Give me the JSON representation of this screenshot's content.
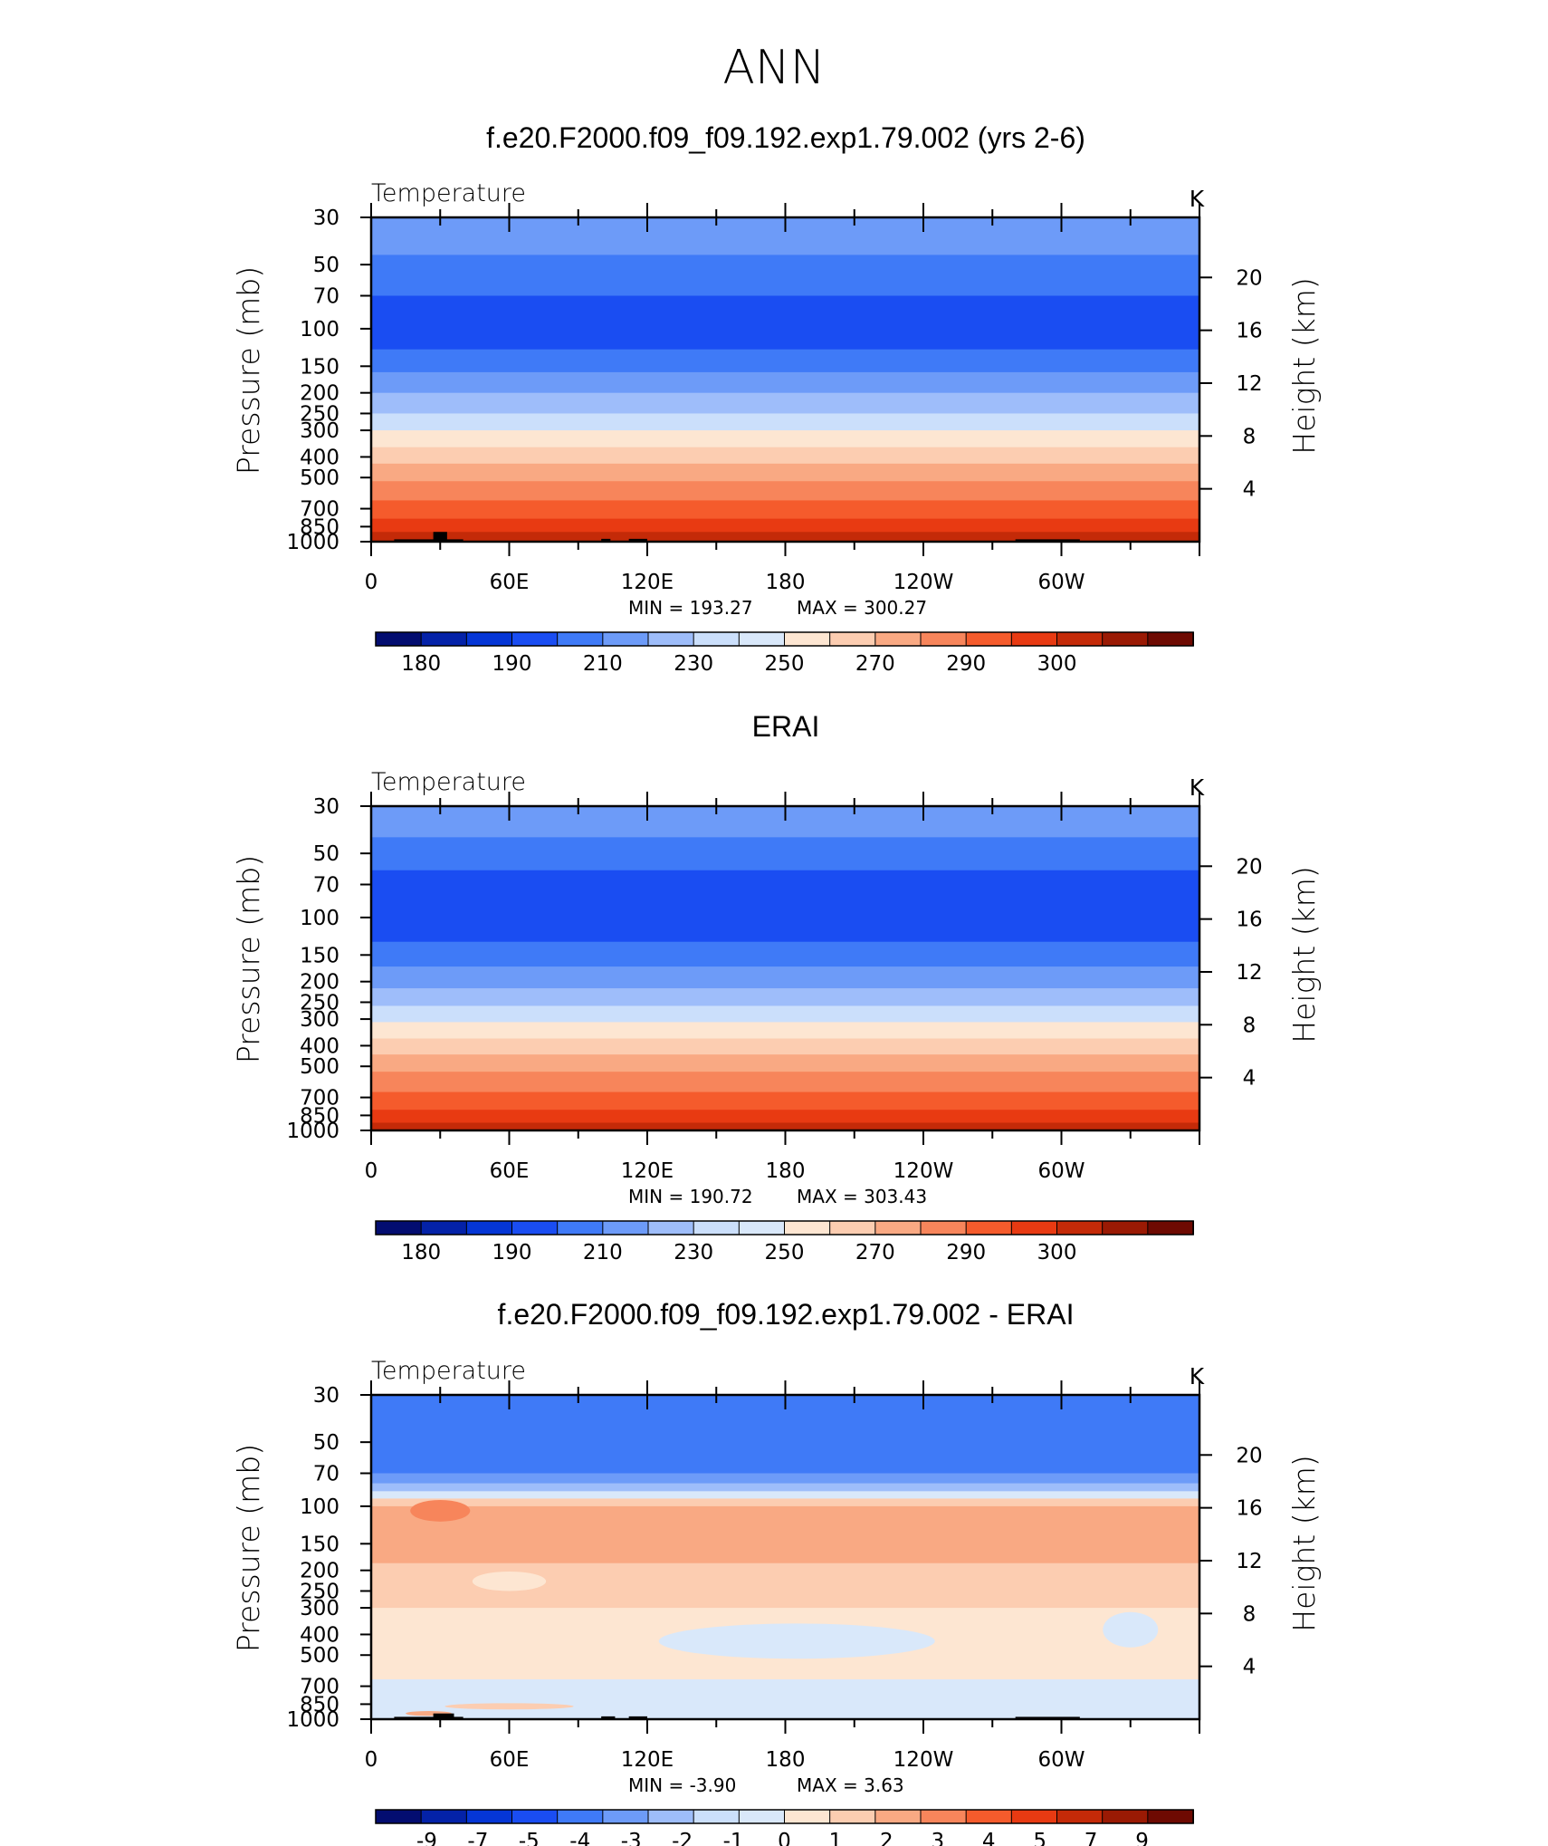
{
  "figure": {
    "title": "ANN"
  },
  "colors": {
    "abs_scale": [
      "#030d70",
      "#0422a8",
      "#0536d6",
      "#1a4df2",
      "#3f7af7",
      "#6d9bf8",
      "#9ebdfa",
      "#cbdffb",
      "#d9e8fa",
      "#fde6d2",
      "#fccdb1",
      "#f9a983",
      "#f7855b",
      "#f55b2c",
      "#e83a12",
      "#c42a08",
      "#9a1a04",
      "#6e0a02"
    ],
    "diff_scale": [
      "#030d70",
      "#0422a8",
      "#0536d6",
      "#1a4df2",
      "#3f7af7",
      "#6d9bf8",
      "#9ebdfa",
      "#cbdffb",
      "#d9e8fa",
      "#fde6d2",
      "#fccdb1",
      "#f9a983",
      "#f7855b",
      "#f55b2c",
      "#e83a12",
      "#c42a08",
      "#9a1a04",
      "#6e0a02"
    ],
    "land": "#000000"
  },
  "chart_data": [
    {
      "type": "heatmap",
      "title": "f.e20.F2000.f09_f09.192.exp1.79.002 (yrs 2-6)",
      "variable": "Temperature",
      "units": "K",
      "ylabel": "Pressure (mb)",
      "ylabel_right": "Height (km)",
      "x_ticklabels": [
        "0",
        "60E",
        "120E",
        "180",
        "120W",
        "60W"
      ],
      "x_tick_positions_deg": [
        0,
        60,
        120,
        180,
        240,
        300
      ],
      "xlim": [
        0,
        360
      ],
      "y_ticks_mb": [
        30,
        50,
        70,
        100,
        150,
        200,
        250,
        300,
        400,
        500,
        700,
        850,
        1000
      ],
      "y_tick_labels": [
        "30",
        "50",
        "70",
        "100",
        "150",
        "200",
        "250",
        "300",
        "400",
        "500",
        "700",
        "850",
        "1000"
      ],
      "ylim_mb": [
        1000,
        30
      ],
      "height_ticks_km": [
        4,
        8,
        12,
        16,
        20
      ],
      "height_tick_labels": [
        "4",
        "8",
        "12",
        "16",
        "20"
      ],
      "min_label": "MIN =  193.27",
      "max_label": "MAX =  300.27",
      "colorbar_tick_labels": [
        "180",
        "190",
        "210",
        "230",
        "250",
        "270",
        "290",
        "300"
      ],
      "color_bands": [
        {
          "p_top": 30,
          "p_bot": 45,
          "color_index": 5
        },
        {
          "p_top": 45,
          "p_bot": 70,
          "color_index": 4
        },
        {
          "p_top": 70,
          "p_bot": 125,
          "color_index": 3
        },
        {
          "p_top": 125,
          "p_bot": 160,
          "color_index": 4
        },
        {
          "p_top": 160,
          "p_bot": 200,
          "color_index": 5
        },
        {
          "p_top": 200,
          "p_bot": 250,
          "color_index": 6
        },
        {
          "p_top": 250,
          "p_bot": 300,
          "color_index": 7
        },
        {
          "p_top": 300,
          "p_bot": 360,
          "color_index": 9
        },
        {
          "p_top": 360,
          "p_bot": 430,
          "color_index": 10
        },
        {
          "p_top": 430,
          "p_bot": 520,
          "color_index": 11
        },
        {
          "p_top": 520,
          "p_bot": 640,
          "color_index": 12
        },
        {
          "p_top": 640,
          "p_bot": 780,
          "color_index": 13
        },
        {
          "p_top": 780,
          "p_bot": 900,
          "color_index": 14
        },
        {
          "p_top": 900,
          "p_bot": 1000,
          "color_index": 15
        }
      ],
      "land_blocks": [
        {
          "lon_start": 10,
          "lon_end": 40,
          "p_top": 975
        },
        {
          "lon_start": 27,
          "lon_end": 33,
          "p_top": 900
        },
        {
          "lon_start": 100,
          "lon_end": 104,
          "p_top": 970
        },
        {
          "lon_start": 112,
          "lon_end": 120,
          "p_top": 970
        },
        {
          "lon_start": 280,
          "lon_end": 308,
          "p_top": 975
        }
      ]
    },
    {
      "type": "heatmap",
      "title": "ERAI",
      "variable": "Temperature",
      "units": "K",
      "ylabel": "Pressure (mb)",
      "ylabel_right": "Height (km)",
      "x_ticklabels": [
        "0",
        "60E",
        "120E",
        "180",
        "120W",
        "60W"
      ],
      "x_tick_positions_deg": [
        0,
        60,
        120,
        180,
        240,
        300
      ],
      "xlim": [
        0,
        360
      ],
      "y_ticks_mb": [
        30,
        50,
        70,
        100,
        150,
        200,
        250,
        300,
        400,
        500,
        700,
        850,
        1000
      ],
      "y_tick_labels": [
        "30",
        "50",
        "70",
        "100",
        "150",
        "200",
        "250",
        "300",
        "400",
        "500",
        "700",
        "850",
        "1000"
      ],
      "ylim_mb": [
        1000,
        30
      ],
      "height_ticks_km": [
        4,
        8,
        12,
        16,
        20
      ],
      "height_tick_labels": [
        "4",
        "8",
        "12",
        "16",
        "20"
      ],
      "min_label": "MIN =  190.72",
      "max_label": "MAX =  303.43",
      "colorbar_tick_labels": [
        "180",
        "190",
        "210",
        "230",
        "250",
        "270",
        "290",
        "300"
      ],
      "color_bands": [
        {
          "p_top": 30,
          "p_bot": 42,
          "color_index": 5
        },
        {
          "p_top": 42,
          "p_bot": 60,
          "color_index": 4
        },
        {
          "p_top": 60,
          "p_bot": 130,
          "color_index": 3
        },
        {
          "p_top": 130,
          "p_bot": 170,
          "color_index": 4
        },
        {
          "p_top": 170,
          "p_bot": 215,
          "color_index": 5
        },
        {
          "p_top": 215,
          "p_bot": 260,
          "color_index": 6
        },
        {
          "p_top": 260,
          "p_bot": 310,
          "color_index": 7
        },
        {
          "p_top": 310,
          "p_bot": 370,
          "color_index": 9
        },
        {
          "p_top": 370,
          "p_bot": 440,
          "color_index": 10
        },
        {
          "p_top": 440,
          "p_bot": 530,
          "color_index": 11
        },
        {
          "p_top": 530,
          "p_bot": 660,
          "color_index": 12
        },
        {
          "p_top": 660,
          "p_bot": 800,
          "color_index": 13
        },
        {
          "p_top": 800,
          "p_bot": 920,
          "color_index": 14
        },
        {
          "p_top": 920,
          "p_bot": 1000,
          "color_index": 15
        }
      ],
      "land_blocks": []
    },
    {
      "type": "heatmap",
      "title": "f.e20.F2000.f09_f09.192.exp1.79.002 - ERAI",
      "variable": "Temperature",
      "units": "K",
      "ylabel": "Pressure (mb)",
      "ylabel_right": "Height (km)",
      "x_ticklabels": [
        "0",
        "60E",
        "120E",
        "180",
        "120W",
        "60W"
      ],
      "x_tick_positions_deg": [
        0,
        60,
        120,
        180,
        240,
        300
      ],
      "xlim": [
        0,
        360
      ],
      "y_ticks_mb": [
        30,
        50,
        70,
        100,
        150,
        200,
        250,
        300,
        400,
        500,
        700,
        850,
        1000
      ],
      "y_tick_labels": [
        "30",
        "50",
        "70",
        "100",
        "150",
        "200",
        "250",
        "300",
        "400",
        "500",
        "700",
        "850",
        "1000"
      ],
      "ylim_mb": [
        1000,
        30
      ],
      "height_ticks_km": [
        4,
        8,
        12,
        16,
        20
      ],
      "height_tick_labels": [
        "4",
        "8",
        "12",
        "16",
        "20"
      ],
      "min_label": "MIN =   -3.90",
      "max_label": "MAX =     3.63",
      "colorbar_tick_labels": [
        "-9",
        "-7",
        "-5",
        "-4",
        "-3",
        "-2",
        "-1",
        "0",
        "1",
        "2",
        "3",
        "4",
        "5",
        "7",
        "9"
      ],
      "color_bands": [
        {
          "p_top": 30,
          "p_bot": 70,
          "color_index": 4
        },
        {
          "p_top": 70,
          "p_bot": 78,
          "color_index": 5
        },
        {
          "p_top": 78,
          "p_bot": 85,
          "color_index": 6
        },
        {
          "p_top": 85,
          "p_bot": 92,
          "color_index": 8
        },
        {
          "p_top": 92,
          "p_bot": 100,
          "color_index": 10
        },
        {
          "p_top": 100,
          "p_bot": 185,
          "color_index": 11
        },
        {
          "p_top": 185,
          "p_bot": 300,
          "color_index": 10
        },
        {
          "p_top": 300,
          "p_bot": 650,
          "color_index": 9
        },
        {
          "p_top": 650,
          "p_bot": 1000,
          "color_index": 8
        }
      ],
      "anomaly_patches": [
        {
          "lon": 30,
          "p": 105,
          "rx": 13,
          "ry_mb": 13,
          "color_index": 12
        },
        {
          "lon": 60,
          "p": 225,
          "rx": 16,
          "ry_mb": 25,
          "color_index": 9
        },
        {
          "lon": 185,
          "p": 430,
          "rx": 60,
          "ry_mb": 90,
          "color_index": 8
        },
        {
          "lon": 330,
          "p": 380,
          "rx": 12,
          "ry_mb": 80,
          "color_index": 8
        },
        {
          "lon": 60,
          "p": 870,
          "rx": 28,
          "ry_mb": 30,
          "color_index": 10
        },
        {
          "lon": 25,
          "p": 940,
          "rx": 10,
          "ry_mb": 25,
          "color_index": 11
        }
      ],
      "land_blocks": [
        {
          "lon_start": 10,
          "lon_end": 40,
          "p_top": 975
        },
        {
          "lon_start": 27,
          "lon_end": 36,
          "p_top": 940
        },
        {
          "lon_start": 100,
          "lon_end": 106,
          "p_top": 970
        },
        {
          "lon_start": 112,
          "lon_end": 120,
          "p_top": 970
        },
        {
          "lon_start": 280,
          "lon_end": 308,
          "p_top": 975
        }
      ]
    }
  ]
}
